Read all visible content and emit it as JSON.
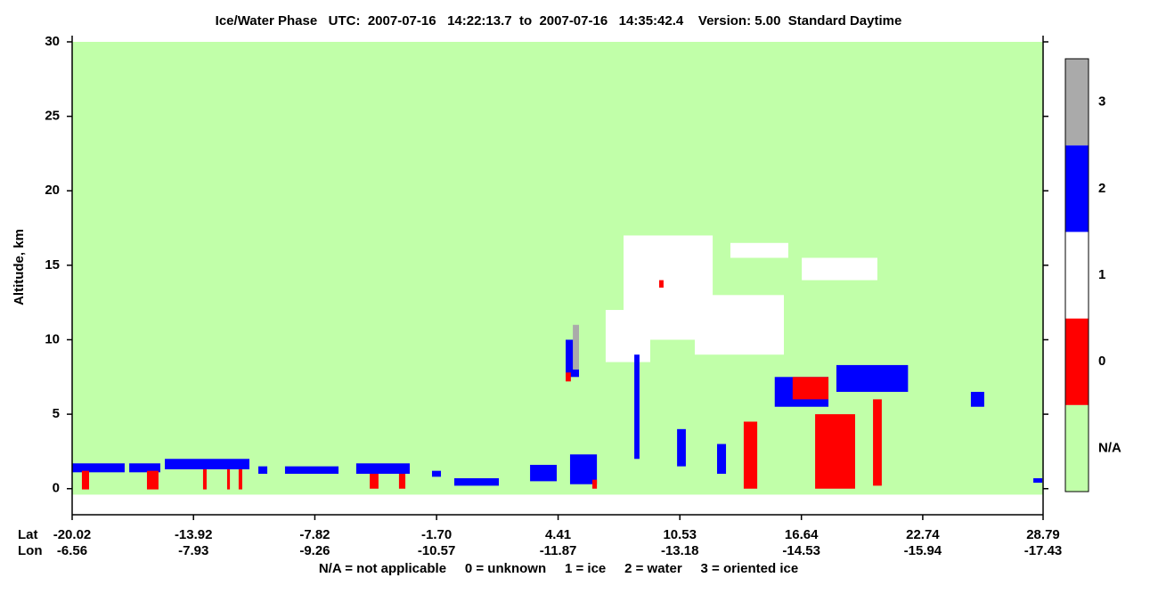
{
  "chart_data": {
    "type": "phase-curtain",
    "title": "Ice/Water Phase   UTC:  2007-07-16   14:22:13.7  to  2007-07-16   14:35:42.4    Version: 5.00  Standard Daytime",
    "y_label": "Altitude, km",
    "lat_label": "Lat",
    "lon_label": "Lon",
    "footer": "N/A = not applicable     0 = unknown     1 = ice     2 = water     3 = oriented ice",
    "xlim": [
      -20.02,
      28.79
    ],
    "xticks": [
      -20.02,
      -13.92,
      -7.82,
      {
        "value": -1.7,
        "label": "-1.70"
      },
      4.41,
      10.53,
      16.64,
      22.74,
      28.79
    ],
    "lon_ticks": [
      -6.56,
      -7.93,
      -9.26,
      -10.57,
      -11.87,
      -13.18,
      -14.53,
      -15.94,
      -17.43
    ],
    "ylim": [
      -1.75,
      30
    ],
    "yticks": [
      0,
      5,
      10,
      15,
      20,
      25,
      30
    ],
    "surface_altitude": -0.4,
    "phases": [
      {
        "label": "N/A",
        "color": "#c1ffa9"
      },
      {
        "label": "0",
        "color": "#ff0000"
      },
      {
        "label": "1",
        "color": "#ffffff"
      },
      {
        "label": "2",
        "color": "#0000ff"
      },
      {
        "label": "3",
        "color": "#aaaaaa"
      }
    ],
    "features": [
      {
        "phase": 2,
        "x": [
          -20.02,
          -17.38
        ],
        "y": [
          1.1,
          1.7
        ]
      },
      {
        "phase": 2,
        "x": [
          -17.15,
          -15.59
        ],
        "y": [
          1.1,
          1.7
        ]
      },
      {
        "phase": 2,
        "x": [
          -15.36,
          -11.11
        ],
        "y": [
          1.3,
          2.0
        ]
      },
      {
        "phase": 2,
        "x": [
          -10.66,
          -10.21
        ],
        "y": [
          1.0,
          1.5
        ]
      },
      {
        "phase": 2,
        "x": [
          -9.32,
          -6.63
        ],
        "y": [
          1.0,
          1.5
        ]
      },
      {
        "phase": 2,
        "x": [
          -5.74,
          -3.05
        ],
        "y": [
          1.0,
          1.7
        ]
      },
      {
        "phase": 2,
        "x": [
          -1.93,
          -1.48
        ],
        "y": [
          0.8,
          1.2
        ]
      },
      {
        "phase": 2,
        "x": [
          -0.81,
          1.43
        ],
        "y": [
          0.2,
          0.7
        ]
      },
      {
        "phase": 2,
        "x": [
          3.0,
          4.34
        ],
        "y": [
          0.5,
          1.6
        ]
      },
      {
        "phase": 2,
        "x": [
          5.01,
          6.36
        ],
        "y": [
          0.3,
          2.3
        ]
      },
      {
        "phase": 2,
        "x": [
          28.3,
          28.75
        ],
        "y": [
          0.4,
          0.7
        ]
      },
      {
        "phase": 0,
        "x": [
          -19.53,
          -19.17
        ],
        "y": [
          -0.05,
          1.2
        ]
      },
      {
        "phase": 0,
        "x": [
          -16.26,
          -15.68
        ],
        "y": [
          -0.05,
          1.2
        ]
      },
      {
        "phase": 0,
        "x": [
          -13.44,
          -13.26
        ],
        "y": [
          -0.05,
          1.3
        ]
      },
      {
        "phase": 0,
        "x": [
          -12.23,
          -12.09
        ],
        "y": [
          -0.05,
          1.3
        ]
      },
      {
        "phase": 0,
        "x": [
          -11.65,
          -11.47
        ],
        "y": [
          -0.05,
          1.3
        ]
      },
      {
        "phase": 0,
        "x": [
          -5.06,
          -4.62
        ],
        "y": [
          0,
          1.0
        ]
      },
      {
        "phase": 0,
        "x": [
          -3.59,
          -3.27
        ],
        "y": [
          0,
          1.0
        ]
      },
      {
        "phase": 0,
        "x": [
          6.13,
          6.36
        ],
        "y": [
          0,
          0.6
        ]
      },
      {
        "phase": 1,
        "x": [
          6.8,
          9.04
        ],
        "y": [
          8.5,
          12
        ]
      },
      {
        "phase": 1,
        "x": [
          7.7,
          12.18
        ],
        "y": [
          10,
          17
        ]
      },
      {
        "phase": 1,
        "x": [
          11.28,
          15.76
        ],
        "y": [
          9,
          13
        ]
      },
      {
        "phase": 1,
        "x": [
          13.07,
          15.98
        ],
        "y": [
          15.5,
          16.5
        ]
      },
      {
        "phase": 1,
        "x": [
          16.66,
          20.46
        ],
        "y": [
          14,
          15.5
        ]
      },
      {
        "phase": 2,
        "x": [
          4.79,
          5.46
        ],
        "y": [
          7.5,
          10
        ]
      },
      {
        "phase": 0,
        "x": [
          4.79,
          5.05
        ],
        "y": [
          7.2,
          7.8
        ]
      },
      {
        "phase": 3,
        "x": [
          5.15,
          5.46
        ],
        "y": [
          8,
          11
        ]
      },
      {
        "phase": 2,
        "x": [
          8.24,
          8.5
        ],
        "y": [
          2,
          9
        ]
      },
      {
        "phase": 2,
        "x": [
          10.39,
          10.83
        ],
        "y": [
          1.5,
          4
        ]
      },
      {
        "phase": 2,
        "x": [
          12.4,
          12.85
        ],
        "y": [
          1,
          3
        ]
      },
      {
        "phase": 0,
        "x": [
          9.49,
          9.71
        ],
        "y": [
          13.5,
          14
        ]
      },
      {
        "phase": 2,
        "x": [
          15.3,
          18.0
        ],
        "y": [
          5.5,
          7.5
        ]
      },
      {
        "phase": 2,
        "x": [
          18.4,
          22.0
        ],
        "y": [
          6.5,
          8.3
        ]
      },
      {
        "phase": 0,
        "x": [
          16.2,
          18.0
        ],
        "y": [
          6,
          7.5
        ]
      },
      {
        "phase": 0,
        "x": [
          13.74,
          14.42
        ],
        "y": [
          0,
          4.5
        ]
      },
      {
        "phase": 0,
        "x": [
          17.33,
          19.34
        ],
        "y": [
          0,
          5
        ]
      },
      {
        "phase": 0,
        "x": [
          20.24,
          20.68
        ],
        "y": [
          0.2,
          6
        ]
      },
      {
        "phase": 2,
        "x": [
          25.16,
          25.83
        ],
        "y": [
          5.5,
          6.5
        ]
      }
    ]
  }
}
